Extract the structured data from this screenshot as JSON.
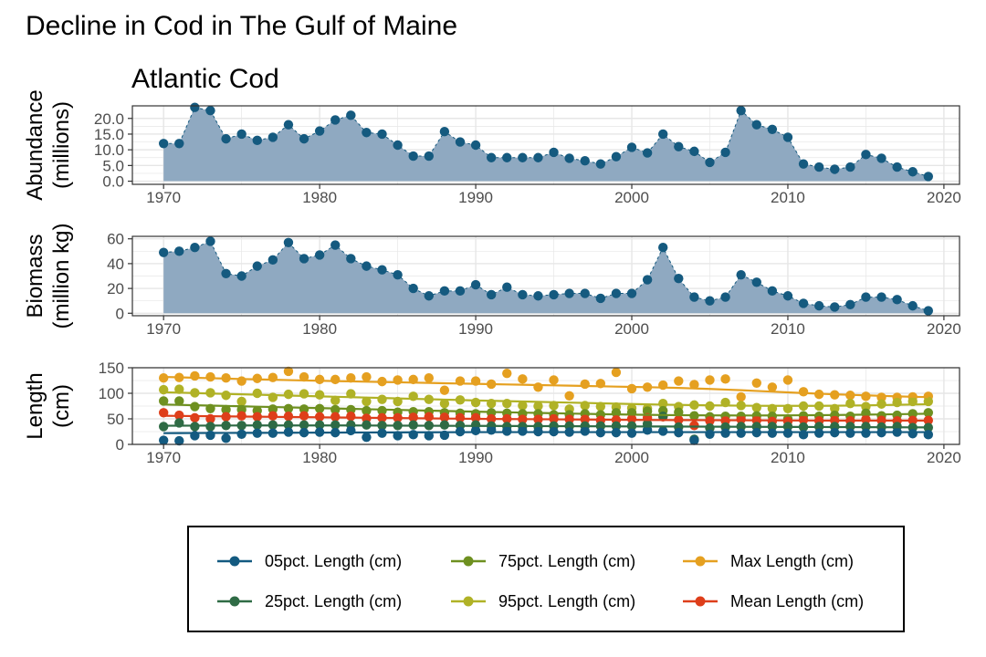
{
  "title": "Decline in Cod in The Gulf of Maine",
  "subtitle": "Atlantic Cod",
  "colors": {
    "area_fill": "#8fa9c1",
    "point": "#155a7f",
    "grid": "#e6e6e6",
    "axis": "#4d4d4d",
    "p05": "#135a80",
    "p25": "#2f6b45",
    "p75": "#6e9020",
    "p95": "#b0b226",
    "max": "#e5a020",
    "mean": "#de3e1a"
  },
  "chart_data": [
    {
      "type": "area",
      "ylabel_lines": [
        "Abundance",
        "(millions)"
      ],
      "xlim": [
        1968,
        2021
      ],
      "ylim": [
        -1,
        24
      ],
      "xticks": [
        1970,
        1980,
        1990,
        2000,
        2010,
        2020
      ],
      "yticks": [
        0,
        5,
        10,
        15,
        20
      ],
      "ytick_labels": [
        "0.0",
        "5.0",
        "10.0",
        "15.0",
        "20.0"
      ],
      "x": [
        1970,
        1971,
        1972,
        1973,
        1974,
        1975,
        1976,
        1977,
        1978,
        1979,
        1980,
        1981,
        1982,
        1983,
        1984,
        1985,
        1986,
        1987,
        1988,
        1989,
        1990,
        1991,
        1992,
        1993,
        1994,
        1995,
        1996,
        1997,
        1998,
        1999,
        2000,
        2001,
        2002,
        2003,
        2004,
        2005,
        2006,
        2007,
        2008,
        2009,
        2010,
        2011,
        2012,
        2013,
        2014,
        2015,
        2016,
        2017,
        2018,
        2019
      ],
      "values": [
        12,
        12,
        23.5,
        22.5,
        13.5,
        15,
        13,
        14,
        18,
        13.5,
        16,
        19.5,
        21,
        15.5,
        15,
        11.5,
        8,
        8,
        15.8,
        12.5,
        11.5,
        7.5,
        7.5,
        7.5,
        7.5,
        9.2,
        7.3,
        6.5,
        5.5,
        7.8,
        10.8,
        9,
        15,
        11,
        9.5,
        6,
        9.2,
        22.5,
        18,
        16.5,
        14,
        5.5,
        4.5,
        3.8,
        4.5,
        8.5,
        7.3,
        4.5,
        3,
        1.5
      ]
    },
    {
      "type": "area",
      "ylabel_lines": [
        "Biomass",
        "(million kg)"
      ],
      "xlim": [
        1968,
        2021
      ],
      "ylim": [
        -2,
        62
      ],
      "xticks": [
        1970,
        1980,
        1990,
        2000,
        2010,
        2020
      ],
      "yticks": [
        0,
        20,
        40,
        60
      ],
      "ytick_labels": [
        "0",
        "20",
        "40",
        "60"
      ],
      "x": [
        1970,
        1971,
        1972,
        1973,
        1974,
        1975,
        1976,
        1977,
        1978,
        1979,
        1980,
        1981,
        1982,
        1983,
        1984,
        1985,
        1986,
        1987,
        1988,
        1989,
        1990,
        1991,
        1992,
        1993,
        1994,
        1995,
        1996,
        1997,
        1998,
        1999,
        2000,
        2001,
        2002,
        2003,
        2004,
        2005,
        2006,
        2007,
        2008,
        2009,
        2010,
        2011,
        2012,
        2013,
        2014,
        2015,
        2016,
        2017,
        2018,
        2019
      ],
      "values": [
        49,
        50,
        53,
        58,
        32,
        30,
        38,
        43,
        57,
        44,
        47,
        55,
        44,
        38,
        35,
        31,
        20,
        14,
        18,
        18,
        23,
        15,
        21,
        15,
        14,
        15,
        16,
        16,
        12,
        16,
        16,
        27,
        53,
        28,
        13,
        10,
        13,
        31,
        25,
        18,
        14,
        8,
        6,
        5,
        7,
        13,
        13,
        11,
        6,
        2
      ]
    },
    {
      "type": "scatter",
      "ylabel_lines": [
        "Length",
        "(cm)"
      ],
      "xlim": [
        1968,
        2021
      ],
      "ylim": [
        0,
        150
      ],
      "xticks": [
        1970,
        1980,
        1990,
        2000,
        2010,
        2020
      ],
      "yticks": [
        0,
        50,
        100,
        150
      ],
      "ytick_labels": [
        "0",
        "50",
        "100",
        "150"
      ],
      "x": [
        1970,
        1971,
        1972,
        1973,
        1974,
        1975,
        1976,
        1977,
        1978,
        1979,
        1980,
        1981,
        1982,
        1983,
        1984,
        1985,
        1986,
        1987,
        1988,
        1989,
        1990,
        1991,
        1992,
        1993,
        1994,
        1995,
        1996,
        1997,
        1998,
        1999,
        2000,
        2001,
        2002,
        2003,
        2004,
        2005,
        2006,
        2007,
        2008,
        2009,
        2010,
        2011,
        2012,
        2013,
        2014,
        2015,
        2016,
        2017,
        2018,
        2019
      ],
      "series": [
        {
          "name": "Max Length (cm)",
          "color_key": "max",
          "values": [
            130,
            131,
            134,
            132,
            130,
            124,
            129,
            131,
            143,
            132,
            127,
            127,
            130,
            132,
            123,
            126,
            127,
            130,
            106,
            124,
            124,
            118,
            139,
            128,
            112,
            126,
            95,
            118,
            119,
            141,
            109,
            112,
            116,
            124,
            117,
            126,
            128,
            93,
            120,
            112,
            126,
            103,
            98,
            97,
            96,
            94,
            92,
            92,
            93,
            94
          ],
          "trend": [
            132,
            131.2,
            130.4,
            129.6,
            128.8,
            128,
            127.2,
            126.5,
            125.8,
            125.1,
            124.5,
            123.9,
            123.3,
            122.7,
            122.1,
            121.5,
            120.9,
            120.3,
            119.7,
            119.1,
            118.5,
            117.9,
            117.3,
            116.7,
            116.1,
            115.5,
            114.9,
            114.3,
            113.7,
            113.1,
            112.5,
            111.9,
            111.3,
            110.5,
            109.5,
            108.5,
            107.3,
            106,
            104.6,
            103.2,
            101.8,
            100.5,
            99.2,
            98,
            97,
            96,
            95,
            94,
            93.2,
            92.5
          ]
        },
        {
          "name": "95pct. Length (cm)",
          "color_key": "p95",
          "values": [
            107,
            108,
            101,
            101,
            96,
            84,
            100,
            92,
            98,
            99,
            97,
            86,
            99,
            84,
            88,
            84,
            94,
            88,
            80,
            87,
            82,
            80,
            80,
            76,
            75,
            76,
            69,
            76,
            74,
            73,
            71,
            70,
            80,
            74,
            77,
            75,
            82,
            76,
            72,
            70,
            70,
            75,
            75,
            70,
            80,
            74,
            79,
            82,
            84,
            84
          ],
          "trend": [
            102,
            101.2,
            100.4,
            99.6,
            98.8,
            98,
            97.2,
            96.4,
            95.6,
            94.8,
            94,
            93.2,
            92.4,
            91.6,
            90.8,
            90,
            89.2,
            88.4,
            87.6,
            86.8,
            86,
            85.3,
            84.6,
            83.9,
            83.2,
            82.5,
            81.8,
            81.1,
            80.4,
            79.7,
            79,
            78.4,
            77.8,
            77.3,
            76.8,
            76.4,
            76.1,
            75.8,
            75.6,
            75.5,
            75.4,
            75.4,
            75.5,
            75.7,
            76,
            76.4,
            76.9,
            77.4,
            78,
            78.6
          ]
        },
        {
          "name": "75pct. Length (cm)",
          "color_key": "p75",
          "values": [
            85,
            85,
            74,
            70,
            68,
            68,
            66,
            69,
            70,
            69,
            70,
            68,
            68,
            66,
            66,
            63,
            64,
            64,
            62,
            61,
            60,
            62,
            61,
            60,
            60,
            58,
            58,
            60,
            58,
            62,
            62,
            65,
            66,
            63,
            56,
            54,
            55,
            55,
            56,
            55,
            50,
            56,
            55,
            57,
            55,
            61,
            56,
            57,
            60,
            62
          ],
          "trend": [
            78,
            77.3,
            76.6,
            75.9,
            75.2,
            74.5,
            73.8,
            73.1,
            72.4,
            71.7,
            71,
            70.3,
            69.6,
            68.9,
            68.2,
            67.5,
            66.8,
            66.1,
            65.4,
            64.7,
            64,
            63.4,
            62.8,
            62.2,
            61.6,
            61,
            60.4,
            59.8,
            59.2,
            58.7,
            58.2,
            57.8,
            57.5,
            57.2,
            57,
            56.8,
            56.7,
            56.6,
            56.6,
            56.7,
            56.8,
            57,
            57.2,
            57.5,
            57.8,
            58.2,
            58.6,
            59,
            59.5,
            60
          ]
        },
        {
          "name": "Mean Length (cm)",
          "color_key": "mean",
          "values": [
            62,
            57,
            52,
            50,
            54,
            56,
            54,
            56,
            55,
            56,
            54,
            54,
            55,
            51,
            52,
            52,
            53,
            54,
            53,
            52,
            52,
            50,
            50,
            49,
            49,
            50,
            49,
            49,
            47,
            48,
            50,
            52,
            54,
            48,
            37,
            46,
            46,
            49,
            47,
            45,
            45,
            48,
            46,
            47,
            46,
            49,
            47,
            46,
            47,
            47
          ],
          "trend": [
            56,
            55.7,
            55.4,
            55.1,
            54.8,
            54.5,
            54.2,
            53.9,
            53.6,
            53.3,
            53,
            52.7,
            52.4,
            52.1,
            51.8,
            51.5,
            51.2,
            50.9,
            50.6,
            50.3,
            50,
            49.8,
            49.6,
            49.4,
            49.2,
            49,
            48.8,
            48.6,
            48.4,
            48.2,
            48,
            47.8,
            47.7,
            47.6,
            47.5,
            47.4,
            47.3,
            47.2,
            47.1,
            47,
            46.9,
            46.8,
            46.7,
            46.6,
            46.6,
            46.6,
            46.6,
            46.6,
            46.6,
            46.6
          ]
        },
        {
          "name": "25pct. Length (cm)",
          "color_key": "p25",
          "values": [
            35,
            42,
            35,
            35,
            37,
            37,
            38,
            38,
            38,
            38,
            38,
            38,
            38,
            38,
            37,
            37,
            38,
            37,
            38,
            37,
            38,
            36,
            35,
            35,
            35,
            36,
            36,
            36,
            36,
            36,
            36,
            40,
            55,
            34,
            10,
            32,
            34,
            35,
            35,
            35,
            35,
            34,
            35,
            35,
            35,
            35,
            34,
            35,
            33,
            33
          ],
          "trend": [
            36.5,
            36.6,
            36.7,
            36.8,
            36.9,
            37,
            37,
            37,
            37,
            37,
            37,
            37,
            37,
            36.9,
            36.8,
            36.7,
            36.6,
            36.5,
            36.4,
            36.3,
            36.2,
            36.1,
            36,
            35.9,
            35.8,
            35.7,
            35.6,
            35.5,
            35.4,
            35.3,
            35.2,
            35.1,
            35,
            34.9,
            34.8,
            34.7,
            34.6,
            34.5,
            34.4,
            34.3,
            34.2,
            34.1,
            34,
            33.9,
            33.8,
            33.7,
            33.6,
            33.5,
            33.4,
            33.3
          ]
        },
        {
          "name": "05pct. Length (cm)",
          "color_key": "p05",
          "values": [
            8,
            7,
            17,
            18,
            12,
            20,
            22,
            22,
            24,
            23,
            24,
            23,
            27,
            14,
            22,
            17,
            19,
            17,
            18,
            25,
            27,
            28,
            26,
            26,
            25,
            25,
            24,
            26,
            23,
            23,
            22,
            28,
            26,
            23,
            8,
            20,
            22,
            22,
            23,
            22,
            22,
            19,
            22,
            23,
            22,
            22,
            23,
            24,
            21,
            19
          ],
          "trend": [
            22,
            22.1,
            22.2,
            22.3,
            22.4,
            22.5,
            22.6,
            22.7,
            22.8,
            22.9,
            23,
            23.1,
            23.2,
            23.3,
            23.4,
            23.5,
            23.6,
            23.7,
            23.8,
            23.9,
            24,
            24,
            24,
            24,
            24,
            24,
            24,
            24,
            24,
            24,
            24,
            24,
            24,
            24,
            24,
            24,
            24,
            24,
            24,
            24,
            24,
            24,
            24,
            24,
            24,
            24,
            24,
            24,
            24,
            24
          ]
        }
      ]
    }
  ],
  "legend": {
    "items": [
      {
        "label": "05pct. Length (cm)",
        "color_key": "p05"
      },
      {
        "label": "75pct. Length (cm)",
        "color_key": "p75"
      },
      {
        "label": "Max Length (cm)",
        "color_key": "max"
      },
      {
        "label": "25pct. Length (cm)",
        "color_key": "p25"
      },
      {
        "label": "95pct. Length (cm)",
        "color_key": "p95"
      },
      {
        "label": "Mean Length (cm)",
        "color_key": "mean"
      }
    ]
  }
}
